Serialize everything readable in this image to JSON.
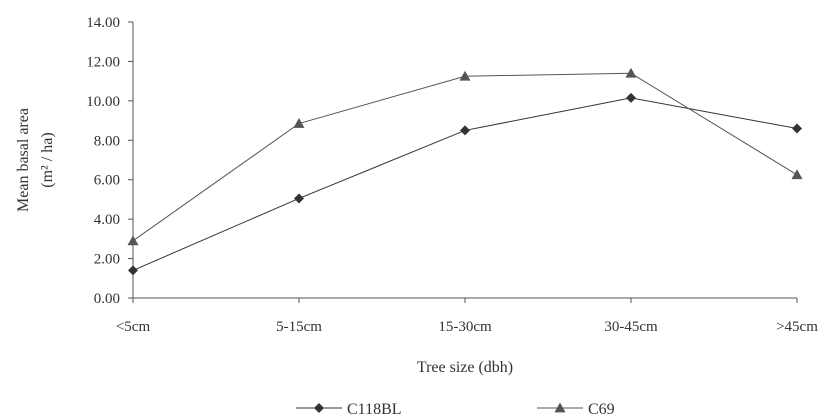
{
  "chart_data": {
    "type": "line",
    "categories": [
      "<5cm",
      "5-15cm",
      "15-30cm",
      "30-45cm",
      ">45cm"
    ],
    "series": [
      {
        "name": "C118BL",
        "marker": "diamond",
        "color": "#333333",
        "values": [
          1.4,
          5.05,
          8.5,
          10.15,
          8.6
        ]
      },
      {
        "name": "C69",
        "marker": "triangle",
        "color": "#555555",
        "values": [
          2.9,
          8.85,
          11.25,
          11.4,
          6.25
        ]
      }
    ],
    "xlabel": "Tree size (dbh)",
    "ylabel_line1": "Mean basal area",
    "ylabel_line2": "(m² / ha)",
    "ylim": [
      0,
      14
    ],
    "yticks": [
      "0.00",
      "2.00",
      "4.00",
      "6.00",
      "8.00",
      "10.00",
      "12.00",
      "14.00"
    ],
    "grid": false,
    "legend_position": "bottom"
  }
}
